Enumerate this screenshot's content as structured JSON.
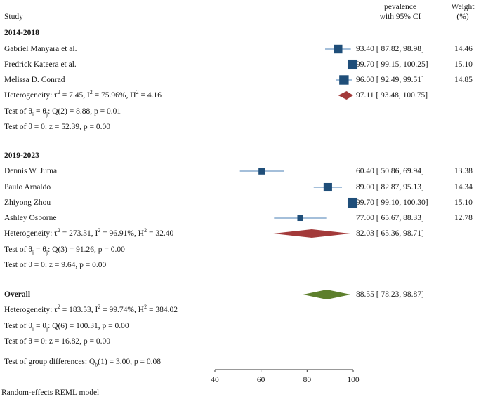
{
  "header": {
    "study": "Study",
    "effect_line1": "pevalence",
    "effect_line2": "with 95% CI",
    "weight_line1": "Weight",
    "weight_line2": "(%)"
  },
  "chart_data": {
    "type": "forest",
    "xlim": [
      40,
      100
    ],
    "xticks": [
      "40",
      "60",
      "80",
      "100"
    ],
    "colors": {
      "study": "#1f4e79",
      "ci": "#4a7fb5",
      "subgroup": "#a33a3a",
      "overall": "#5d7f2c"
    },
    "groups": [
      {
        "name": "2014-2018",
        "studies": [
          {
            "label": "Gabriel Manyara et al.",
            "est": 93.4,
            "lo": 87.82,
            "hi": 98.98,
            "ci_text": "93.40 [ 87.82,   98.98]",
            "weight": "14.46"
          },
          {
            "label": "Fredrick Kateera et al.",
            "est": 99.7,
            "lo": 99.15,
            "hi": 100.25,
            "ci_text": "99.70 [ 99.15, 100.25]",
            "weight": "15.10"
          },
          {
            "label": "Melissa D. Conrad",
            "est": 96.0,
            "lo": 92.49,
            "hi": 99.51,
            "ci_text": "96.00 [ 92.49,   99.51]",
            "weight": "14.85"
          }
        ],
        "pooled": {
          "est": 97.11,
          "lo": 93.48,
          "hi": 100.75,
          "ci_text": "97.11 [ 93.48, 100.75]"
        },
        "heterogeneity": {
          "prefix": "Heterogeneity: τ",
          "tau2": "7.45",
          "I2": "75.96%",
          "H2": "4.16"
        },
        "homogeneity_test": {
          "Q_df": "2",
          "Q": "8.88",
          "p": "0.01"
        },
        "zero_test": {
          "z": "52.39",
          "p": "0.00"
        }
      },
      {
        "name": "2019-2023",
        "studies": [
          {
            "label": "Dennis W. Juma",
            "est": 60.4,
            "lo": 50.86,
            "hi": 69.94,
            "ci_text": "60.40 [ 50.86,   69.94]",
            "weight": "13.38"
          },
          {
            "label": "Paulo Arnaldo",
            "est": 89.0,
            "lo": 82.87,
            "hi": 95.13,
            "ci_text": "89.00 [ 82.87,   95.13]",
            "weight": "14.34"
          },
          {
            "label": "Zhiyong Zhou",
            "est": 99.7,
            "lo": 99.1,
            "hi": 100.3,
            "ci_text": "99.70 [ 99.10, 100.30]",
            "weight": "15.10"
          },
          {
            "label": "Ashley Osborne",
            "est": 77.0,
            "lo": 65.67,
            "hi": 88.33,
            "ci_text": "77.00 [ 65.67,   88.33]",
            "weight": "12.78"
          }
        ],
        "pooled": {
          "est": 82.03,
          "lo": 65.36,
          "hi": 98.71,
          "ci_text": "82.03 [ 65.36,   98.71]"
        },
        "heterogeneity": {
          "prefix": "Heterogeneity: τ",
          "tau2": "273.31",
          "I2": "96.91%",
          "H2": "32.40"
        },
        "homogeneity_test": {
          "Q_df": "3",
          "Q": "91.26",
          "p": "0.00"
        },
        "zero_test": {
          "z": "9.64",
          "p": "0.00"
        }
      }
    ],
    "overall": {
      "label": "Overall",
      "est": 88.55,
      "lo": 78.23,
      "hi": 98.87,
      "ci_text": "88.55 [ 78.23,   98.87]",
      "heterogeneity": {
        "tau2": "183.53",
        "I2": "99.74%",
        "H2": "384.02"
      },
      "homogeneity_test": {
        "Q_df": "6",
        "Q": "100.31",
        "p": "0.00"
      },
      "zero_test": {
        "z": "16.82",
        "p": "0.00"
      }
    },
    "group_differences": {
      "Q_df": "1",
      "Q": "3.00",
      "p": "0.08"
    },
    "footnote": "Random-effects REML model"
  }
}
